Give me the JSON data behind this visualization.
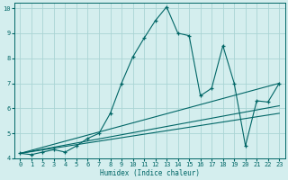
{
  "xlabel": "Humidex (Indice chaleur)",
  "bg_color": "#d4eeee",
  "line_color": "#006666",
  "grid_color": "#aad4d4",
  "xlim": [
    -0.5,
    23.5
  ],
  "ylim": [
    4,
    10.2
  ],
  "yticks": [
    4,
    5,
    6,
    7,
    8,
    9,
    10
  ],
  "xticks": [
    0,
    1,
    2,
    3,
    4,
    5,
    6,
    7,
    8,
    9,
    10,
    11,
    12,
    13,
    14,
    15,
    16,
    17,
    18,
    19,
    20,
    21,
    22,
    23
  ],
  "main_series": [
    [
      0,
      4.2
    ],
    [
      1,
      4.15
    ],
    [
      2,
      4.25
    ],
    [
      3,
      4.35
    ],
    [
      4,
      4.25
    ],
    [
      5,
      4.5
    ],
    [
      6,
      4.8
    ],
    [
      7,
      5.0
    ],
    [
      8,
      5.8
    ],
    [
      9,
      7.0
    ],
    [
      10,
      8.05
    ],
    [
      11,
      8.8
    ],
    [
      12,
      9.5
    ],
    [
      13,
      10.05
    ],
    [
      14,
      9.0
    ],
    [
      15,
      8.9
    ],
    [
      16,
      6.5
    ],
    [
      17,
      6.8
    ],
    [
      18,
      8.5
    ],
    [
      19,
      7.0
    ],
    [
      20,
      4.5
    ],
    [
      21,
      6.3
    ],
    [
      22,
      6.25
    ],
    [
      23,
      7.0
    ]
  ],
  "line1": [
    [
      0,
      4.2
    ],
    [
      23,
      7.0
    ]
  ],
  "line2": [
    [
      0,
      4.2
    ],
    [
      23,
      6.1
    ]
  ],
  "line3": [
    [
      0,
      4.2
    ],
    [
      23,
      5.8
    ]
  ]
}
